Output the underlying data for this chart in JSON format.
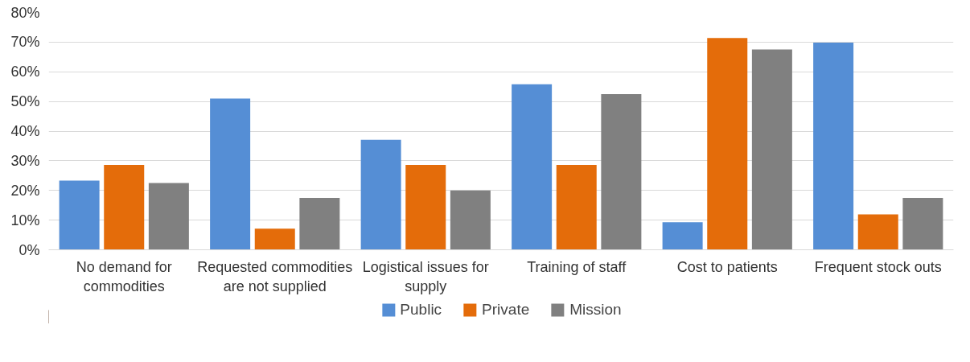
{
  "chart_data": {
    "type": "bar",
    "categories": [
      "No demand for commodities",
      "Requested commodities are not supplied",
      "Logistical issues for supply",
      "Training of staff",
      "Cost to patients",
      "Frequent stock outs"
    ],
    "series": [
      {
        "name": "Public",
        "color": "#558ed5",
        "values": [
          23.3,
          51,
          37.1,
          55.8,
          9.3,
          69.8
        ]
      },
      {
        "name": "Private",
        "color": "#e46c0a",
        "values": [
          28.6,
          7.1,
          28.6,
          28.6,
          71.4,
          11.9
        ]
      },
      {
        "name": "Mission",
        "color": "#808080",
        "values": [
          22.5,
          17.5,
          20,
          52.5,
          67.5,
          17.5
        ]
      }
    ],
    "ylim": [
      0,
      80
    ],
    "yticks": [
      {
        "value": 0,
        "label": "0%"
      },
      {
        "value": 10,
        "label": "10%"
      },
      {
        "value": 20,
        "label": "20%"
      },
      {
        "value": 30,
        "label": "30%"
      },
      {
        "value": 40,
        "label": "40%"
      },
      {
        "value": 50,
        "label": "50%"
      },
      {
        "value": 60,
        "label": "60%"
      },
      {
        "value": 70,
        "label": "70%"
      },
      {
        "value": 80,
        "label": "80%"
      }
    ],
    "grid": "y",
    "legend": "bottom"
  }
}
